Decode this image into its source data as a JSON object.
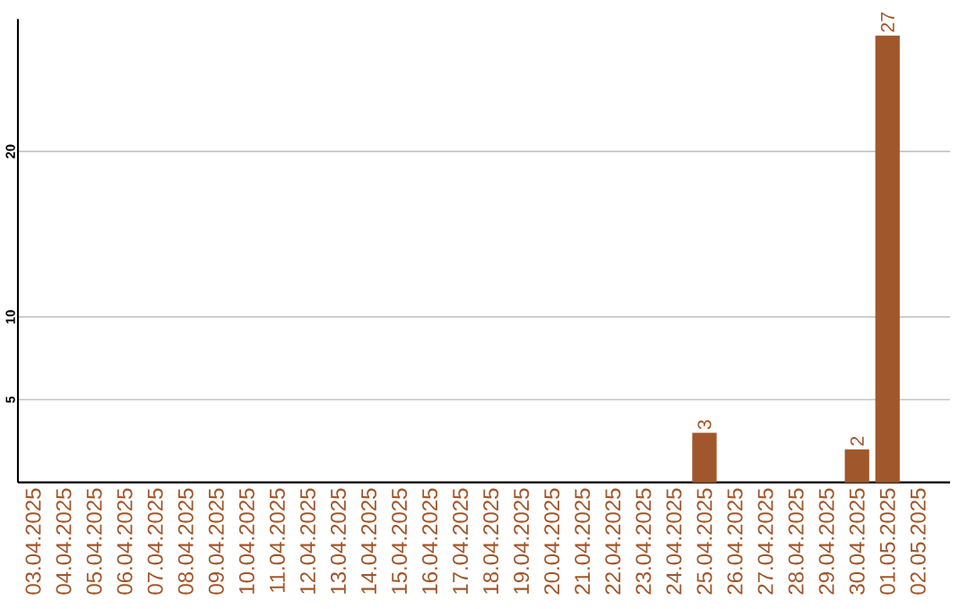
{
  "chart_data": {
    "type": "bar",
    "categories": [
      "03.04.2025",
      "04.04.2025",
      "05.04.2025",
      "06.04.2025",
      "07.04.2025",
      "08.04.2025",
      "09.04.2025",
      "10.04.2025",
      "11.04.2025",
      "12.04.2025",
      "13.04.2025",
      "14.04.2025",
      "15.04.2025",
      "16.04.2025",
      "17.04.2025",
      "18.04.2025",
      "19.04.2025",
      "20.04.2025",
      "21.04.2025",
      "22.04.2025",
      "23.04.2025",
      "24.04.2025",
      "25.04.2025",
      "26.04.2025",
      "27.04.2025",
      "28.04.2025",
      "29.04.2025",
      "30.04.2025",
      "01.05.2025",
      "02.05.2025"
    ],
    "values": [
      0,
      0,
      0,
      0,
      0,
      0,
      0,
      0,
      0,
      0,
      0,
      0,
      0,
      0,
      0,
      0,
      0,
      0,
      0,
      0,
      0,
      0,
      3,
      0,
      0,
      0,
      0,
      2,
      27,
      0
    ],
    "value_labels": [
      null,
      null,
      null,
      null,
      null,
      null,
      null,
      null,
      null,
      null,
      null,
      null,
      null,
      null,
      null,
      null,
      null,
      null,
      null,
      null,
      null,
      null,
      "3",
      null,
      null,
      null,
      null,
      "2",
      "27",
      null
    ],
    "color": "#a0572b",
    "ylim": [
      0,
      28
    ],
    "yticks": [
      5,
      10,
      20
    ],
    "grid": "y"
  }
}
